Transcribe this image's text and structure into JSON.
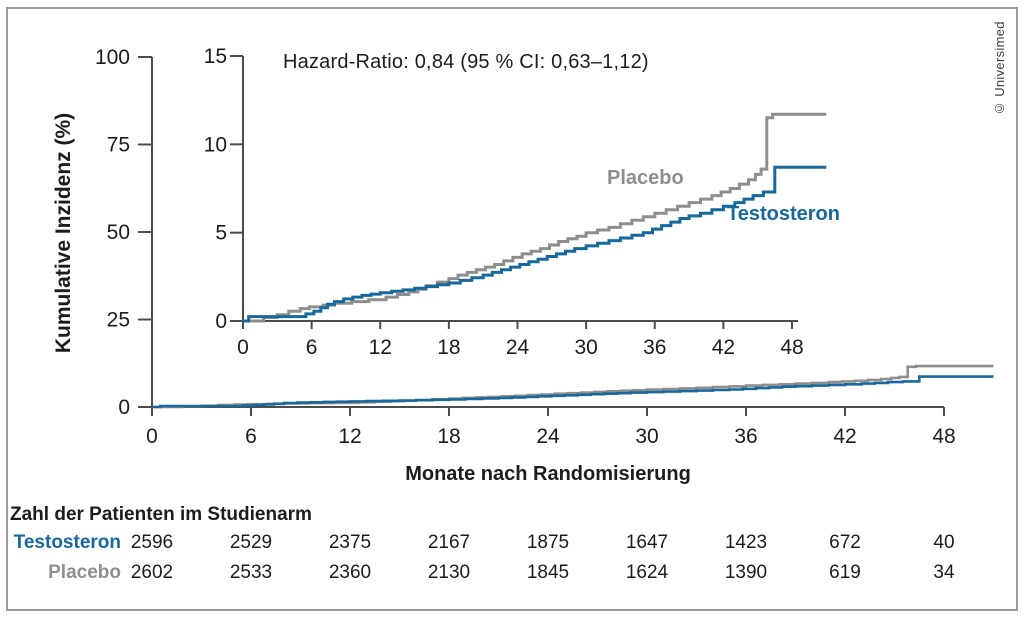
{
  "figure": {
    "copyright": "© Universimed"
  },
  "chart_data": {
    "type": "line",
    "subtype": "kaplan-meier-cumulative-incidence-step",
    "xlabel": "Monate nach Randomisierung",
    "ylabel": "Kumulative Inzidenz (%)",
    "annotation": "Hazard-Ratio: 0,84 (95 % CI: 0,63–1,12)",
    "axis_color": "#4c4c4c",
    "tick_text_color": "#1c1c1c",
    "x_end": 51,
    "main_axis": {
      "name": "main",
      "xlim": [
        0,
        48
      ],
      "ylim": [
        0,
        100
      ],
      "xticks": [
        0,
        6,
        12,
        18,
        24,
        30,
        36,
        42,
        48
      ],
      "yticks": [
        0,
        25,
        50,
        75,
        100
      ],
      "ymax": 100,
      "xmax": 48,
      "grid": false,
      "legend": "inline-labels"
    },
    "inset_axis": {
      "name": "inset",
      "xlim": [
        0,
        48
      ],
      "ylim": [
        0,
        15
      ],
      "xticks": [
        0,
        6,
        12,
        18,
        24,
        30,
        36,
        42,
        48
      ],
      "yticks": [
        0,
        5,
        10,
        15
      ],
      "ymax": 15,
      "xmax": 48,
      "grid": false,
      "legend": "inline-labels"
    },
    "series": [
      {
        "name": "Placebo",
        "color": "#8e8e8e",
        "final_value_pct": 11.7,
        "steps": [
          [
            0,
            0
          ],
          [
            1.8,
            0.2
          ],
          [
            3,
            0.35
          ],
          [
            4,
            0.55
          ],
          [
            5,
            0.7
          ],
          [
            5.8,
            0.8
          ],
          [
            7,
            0.9
          ],
          [
            8,
            1.0
          ],
          [
            9.5,
            1.1
          ],
          [
            11,
            1.2
          ],
          [
            12.5,
            1.35
          ],
          [
            13.5,
            1.5
          ],
          [
            14.5,
            1.65
          ],
          [
            15.3,
            1.8
          ],
          [
            16,
            2.0
          ],
          [
            17,
            2.2
          ],
          [
            18,
            2.4
          ],
          [
            18.8,
            2.6
          ],
          [
            19.6,
            2.75
          ],
          [
            20.4,
            2.9
          ],
          [
            21.2,
            3.05
          ],
          [
            22,
            3.2
          ],
          [
            22.8,
            3.4
          ],
          [
            23.6,
            3.6
          ],
          [
            24.4,
            3.8
          ],
          [
            25.2,
            3.95
          ],
          [
            26,
            4.1
          ],
          [
            26.8,
            4.3
          ],
          [
            27.6,
            4.5
          ],
          [
            28.4,
            4.65
          ],
          [
            29.2,
            4.8
          ],
          [
            30,
            5.0
          ],
          [
            31,
            5.15
          ],
          [
            32,
            5.3
          ],
          [
            33,
            5.5
          ],
          [
            34,
            5.7
          ],
          [
            35,
            5.9
          ],
          [
            36,
            6.1
          ],
          [
            37,
            6.3
          ],
          [
            38,
            6.5
          ],
          [
            39,
            6.7
          ],
          [
            40,
            6.9
          ],
          [
            41,
            7.1
          ],
          [
            41.8,
            7.3
          ],
          [
            42.6,
            7.5
          ],
          [
            43.4,
            7.75
          ],
          [
            44.2,
            8.0
          ],
          [
            44.8,
            8.3
          ],
          [
            45.3,
            8.6
          ],
          [
            45.8,
            11.5
          ],
          [
            46.3,
            11.7
          ]
        ]
      },
      {
        "name": "Testosteron",
        "color": "#16699c",
        "final_value_pct": 8.7,
        "steps": [
          [
            0,
            0
          ],
          [
            0.5,
            0.25
          ],
          [
            5.5,
            0.4
          ],
          [
            6.2,
            0.55
          ],
          [
            6.8,
            0.75
          ],
          [
            7.4,
            0.95
          ],
          [
            8,
            1.1
          ],
          [
            8.8,
            1.25
          ],
          [
            9.6,
            1.35
          ],
          [
            10.4,
            1.45
          ],
          [
            11.2,
            1.52
          ],
          [
            12,
            1.6
          ],
          [
            13,
            1.68
          ],
          [
            14,
            1.76
          ],
          [
            15,
            1.85
          ],
          [
            16,
            1.95
          ],
          [
            17,
            2.05
          ],
          [
            18,
            2.15
          ],
          [
            19,
            2.3
          ],
          [
            20,
            2.45
          ],
          [
            21,
            2.6
          ],
          [
            21.8,
            2.75
          ],
          [
            22.6,
            2.9
          ],
          [
            23.4,
            3.05
          ],
          [
            24.2,
            3.2
          ],
          [
            25,
            3.35
          ],
          [
            25.8,
            3.5
          ],
          [
            26.6,
            3.65
          ],
          [
            27.4,
            3.8
          ],
          [
            28.2,
            3.95
          ],
          [
            29,
            4.1
          ],
          [
            30,
            4.25
          ],
          [
            31,
            4.4
          ],
          [
            32,
            4.55
          ],
          [
            33,
            4.7
          ],
          [
            34,
            4.85
          ],
          [
            35,
            5.0
          ],
          [
            35.8,
            5.2
          ],
          [
            36.6,
            5.4
          ],
          [
            37.4,
            5.6
          ],
          [
            38.2,
            5.8
          ],
          [
            39,
            5.95
          ],
          [
            40,
            6.1
          ],
          [
            41,
            6.3
          ],
          [
            42,
            6.5
          ],
          [
            43,
            6.7
          ],
          [
            43.8,
            6.9
          ],
          [
            44.6,
            7.1
          ],
          [
            45.5,
            7.3
          ],
          [
            46.5,
            8.7
          ]
        ]
      }
    ]
  },
  "risk_table": {
    "title": "Zahl der Patienten im Studienarm",
    "months": [
      0,
      6,
      12,
      18,
      24,
      30,
      36,
      42,
      48
    ],
    "rows": [
      {
        "label": "Testosteron",
        "color": "#16699c",
        "values": [
          "2596",
          "2529",
          "2375",
          "2167",
          "1875",
          "1647",
          "1423",
          "672",
          "40"
        ]
      },
      {
        "label": "Placebo",
        "color": "#8e8e8e",
        "values": [
          "2602",
          "2533",
          "2360",
          "2130",
          "1845",
          "1624",
          "1390",
          "619",
          "34"
        ]
      }
    ]
  }
}
